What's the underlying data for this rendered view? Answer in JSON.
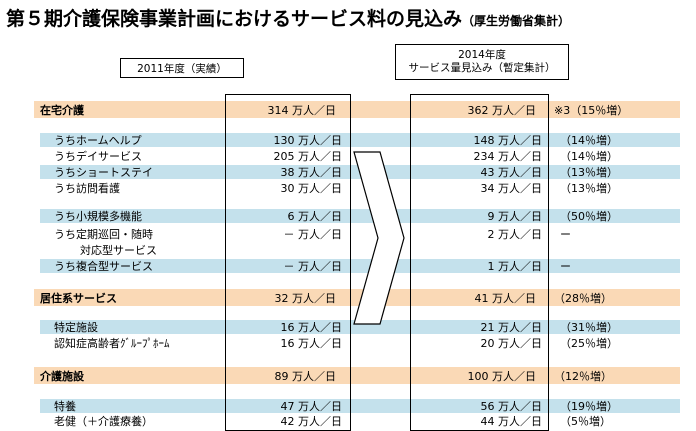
{
  "title": {
    "main": "第５期介護保険事業計画におけるサービス料の見込み",
    "sub": "（厚生労働省集計）"
  },
  "headers": {
    "left": "2011年度（実績）",
    "right_line1": "2014年度",
    "right_line2": "サービス量見込み（暫定集計）"
  },
  "rows": [
    {
      "label": "在宅介護",
      "v2011": "314 万人／日",
      "v2014": "362 万人／日",
      "note": "※3（15％増）"
    },
    {
      "label": "うちホームヘルプ",
      "v2011": "130 万人／日",
      "v2014": "148 万人／日",
      "note": "（14％増）"
    },
    {
      "label": "うちデイサービス",
      "v2011": "205 万人／日",
      "v2014": "234 万人／日",
      "note": "（14％増）"
    },
    {
      "label": "うちショートステイ",
      "v2011": "38 万人／日",
      "v2014": "43 万人／日",
      "note": "（13％増）"
    },
    {
      "label": "うち訪問看護",
      "v2011": "30 万人／日",
      "v2014": "34 万人／日",
      "note": "（13％増）"
    },
    {
      "label": "うち小規模多機能",
      "v2011": "6 万人／日",
      "v2014": "9 万人／日",
      "note": "（50％増）"
    },
    {
      "label": "うち定期巡回・随時",
      "v2011": "－ 万人／日",
      "v2014": "2 万人／日",
      "note": "ー"
    },
    {
      "label": "対応型サービス",
      "v2011": "",
      "v2014": "",
      "note": ""
    },
    {
      "label": "うち複合型サービス",
      "v2011": "－ 万人／日",
      "v2014": "1 万人／日",
      "note": "ー"
    },
    {
      "label": "居住系サービス",
      "v2011": "32 万人／日",
      "v2014": "41 万人／日",
      "note": "（28％増）"
    },
    {
      "label": "特定施設",
      "v2011": "16 万人／日",
      "v2014": "21 万人／日",
      "note": "（31％増）"
    },
    {
      "label": "認知症高齢者ｸﾞﾙｰﾌﾟﾎｰﾑ",
      "v2011": "16 万人／日",
      "v2014": "20 万人／日",
      "note": "（25％増）"
    },
    {
      "label": "介護施設",
      "v2011": "89 万人／日",
      "v2014": "100 万人／日",
      "note": "（12％増）"
    },
    {
      "label": "特養",
      "v2011": "47 万人／日",
      "v2014": "56 万人／日",
      "note": "（19％増）"
    },
    {
      "label": "老健（＋介護療養）",
      "v2011": "42 万人／日",
      "v2014": "44 万人／日",
      "note": "（5％増）"
    }
  ]
}
